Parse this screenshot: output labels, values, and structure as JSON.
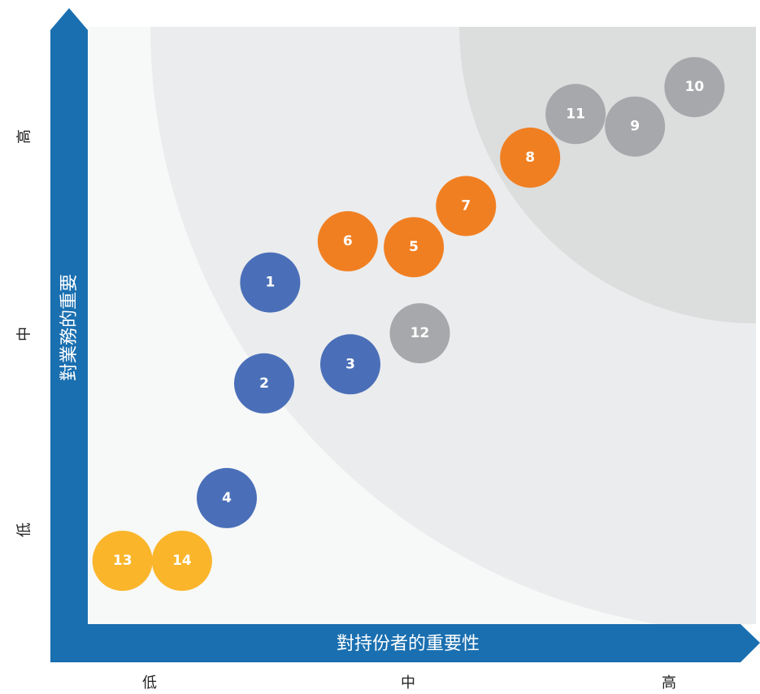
{
  "chart_data": {
    "type": "scatter",
    "xlabel": "對持份者的重要性",
    "ylabel": "對業務的重要",
    "x_ticks": [
      "低",
      "中",
      "高"
    ],
    "y_ticks": [
      "高",
      "中",
      "低"
    ],
    "xlim": [
      0,
      10
    ],
    "ylim": [
      0,
      10
    ],
    "grid": false,
    "legend": "none",
    "colors": {
      "blue": "#4a6fb8",
      "orange": "#f07f22",
      "gray": "#a7a8ab",
      "yellow": "#fab52a",
      "axis": "#1a6fb0",
      "plot_bg": "#f7f8f8",
      "zone_mid": "#ebeced",
      "zone_high": "#dcdddd"
    },
    "points": [
      {
        "label": "1",
        "x": 2.73,
        "y": 5.72,
        "color": "blue"
      },
      {
        "label": "2",
        "x": 2.64,
        "y": 4.03,
        "color": "blue"
      },
      {
        "label": "3",
        "x": 3.93,
        "y": 4.35,
        "color": "blue"
      },
      {
        "label": "4",
        "x": 2.08,
        "y": 2.11,
        "color": "blue"
      },
      {
        "label": "5",
        "x": 4.88,
        "y": 6.31,
        "color": "orange"
      },
      {
        "label": "6",
        "x": 3.89,
        "y": 6.41,
        "color": "orange"
      },
      {
        "label": "7",
        "x": 5.66,
        "y": 7.0,
        "color": "orange"
      },
      {
        "label": "8",
        "x": 6.62,
        "y": 7.81,
        "color": "orange"
      },
      {
        "label": "9",
        "x": 8.19,
        "y": 8.33,
        "color": "gray"
      },
      {
        "label": "10",
        "x": 9.08,
        "y": 8.99,
        "color": "gray"
      },
      {
        "label": "11",
        "x": 7.3,
        "y": 8.54,
        "color": "gray"
      },
      {
        "label": "12",
        "x": 4.97,
        "y": 4.87,
        "color": "gray"
      },
      {
        "label": "13",
        "x": 0.52,
        "y": 1.06,
        "color": "yellow"
      },
      {
        "label": "14",
        "x": 1.41,
        "y": 1.06,
        "color": "yellow"
      }
    ]
  }
}
